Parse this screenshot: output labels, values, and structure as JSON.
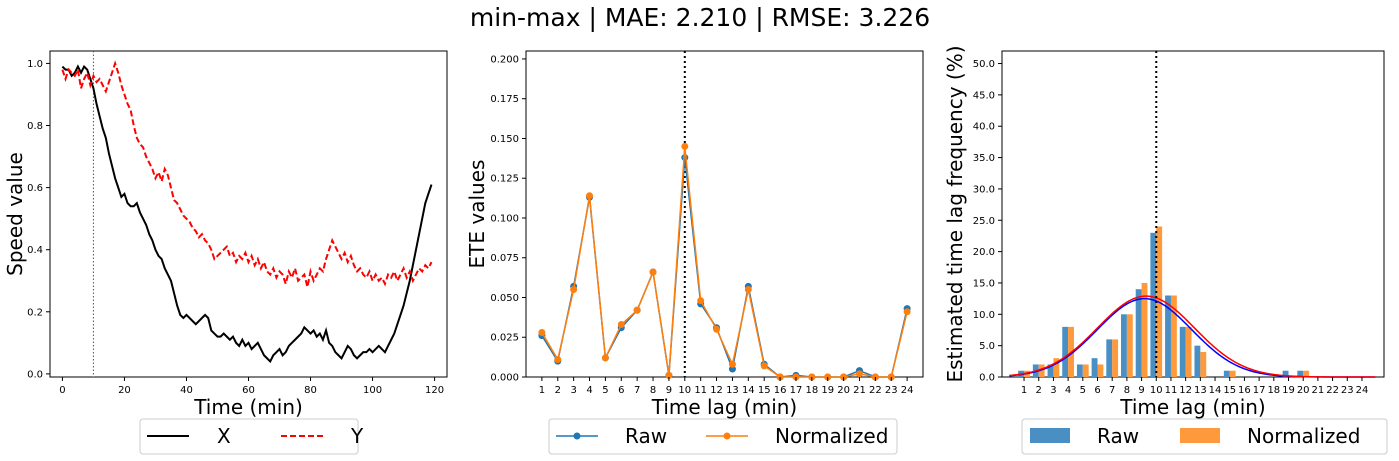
{
  "title": "min-max | MAE: 2.210 | RMSE: 3.226",
  "chart_data": [
    {
      "type": "line",
      "xlabel": "Time (min)",
      "ylabel": "Speed value",
      "xlim": [
        -4,
        124
      ],
      "ylim": [
        -0.01,
        1.04
      ],
      "xticks": [
        "0",
        "20",
        "40",
        "60",
        "80",
        "100",
        "120"
      ],
      "yticks": [
        "0.0",
        "0.2",
        "0.4",
        "0.6",
        "0.8",
        "1.0"
      ],
      "vline": 10,
      "legend": "below",
      "series": [
        {
          "name": "X",
          "color": "#000000",
          "style": "solid",
          "values": [
            0.99,
            0.98,
            0.98,
            0.96,
            0.97,
            0.99,
            0.97,
            0.99,
            0.98,
            0.95,
            0.92,
            0.87,
            0.83,
            0.79,
            0.76,
            0.71,
            0.67,
            0.63,
            0.6,
            0.57,
            0.58,
            0.55,
            0.54,
            0.54,
            0.55,
            0.52,
            0.5,
            0.48,
            0.45,
            0.43,
            0.4,
            0.38,
            0.37,
            0.34,
            0.32,
            0.3,
            0.26,
            0.22,
            0.19,
            0.18,
            0.19,
            0.18,
            0.17,
            0.16,
            0.17,
            0.18,
            0.19,
            0.18,
            0.14,
            0.13,
            0.12,
            0.12,
            0.13,
            0.12,
            0.11,
            0.12,
            0.1,
            0.09,
            0.11,
            0.09,
            0.1,
            0.08,
            0.09,
            0.1,
            0.08,
            0.06,
            0.05,
            0.04,
            0.06,
            0.07,
            0.08,
            0.06,
            0.07,
            0.09,
            0.1,
            0.11,
            0.12,
            0.13,
            0.15,
            0.14,
            0.13,
            0.14,
            0.12,
            0.13,
            0.11,
            0.14,
            0.1,
            0.09,
            0.07,
            0.06,
            0.05,
            0.07,
            0.09,
            0.08,
            0.06,
            0.05,
            0.06,
            0.07,
            0.07,
            0.08,
            0.07,
            0.08,
            0.09,
            0.08,
            0.07,
            0.09,
            0.11,
            0.13,
            0.16,
            0.19,
            0.22,
            0.26,
            0.3,
            0.35,
            0.4,
            0.45,
            0.5,
            0.55,
            0.58,
            0.61
          ]
        },
        {
          "name": "Y",
          "color": "#ff0000",
          "style": "dashed",
          "values": [
            0.98,
            0.95,
            0.98,
            0.97,
            0.96,
            0.98,
            0.92,
            0.95,
            0.97,
            0.93,
            0.96,
            0.94,
            0.95,
            0.93,
            0.91,
            0.94,
            0.97,
            1.0,
            0.97,
            0.93,
            0.9,
            0.87,
            0.85,
            0.8,
            0.76,
            0.74,
            0.73,
            0.7,
            0.68,
            0.66,
            0.63,
            0.65,
            0.62,
            0.66,
            0.64,
            0.6,
            0.56,
            0.55,
            0.53,
            0.51,
            0.5,
            0.49,
            0.47,
            0.46,
            0.44,
            0.45,
            0.43,
            0.42,
            0.4,
            0.37,
            0.38,
            0.39,
            0.4,
            0.41,
            0.38,
            0.39,
            0.36,
            0.38,
            0.37,
            0.39,
            0.36,
            0.38,
            0.35,
            0.37,
            0.34,
            0.36,
            0.33,
            0.32,
            0.34,
            0.31,
            0.33,
            0.32,
            0.29,
            0.33,
            0.31,
            0.34,
            0.3,
            0.31,
            0.32,
            0.28,
            0.33,
            0.3,
            0.32,
            0.34,
            0.33,
            0.37,
            0.4,
            0.43,
            0.41,
            0.39,
            0.37,
            0.39,
            0.36,
            0.38,
            0.35,
            0.33,
            0.34,
            0.32,
            0.31,
            0.33,
            0.3,
            0.32,
            0.3,
            0.31,
            0.29,
            0.32,
            0.31,
            0.33,
            0.3,
            0.32,
            0.34,
            0.31,
            0.33,
            0.3,
            0.32,
            0.34,
            0.33,
            0.35,
            0.34,
            0.36
          ]
        }
      ]
    },
    {
      "type": "line",
      "xlabel": "Time lag (min)",
      "ylabel": "ETE values",
      "xlim": [
        0,
        25
      ],
      "ylim": [
        0,
        0.205
      ],
      "xticks": [
        "1",
        "2",
        "3",
        "4",
        "5",
        "6",
        "7",
        "8",
        "9",
        "10",
        "11",
        "12",
        "13",
        "14",
        "15",
        "16",
        "17",
        "18",
        "19",
        "20",
        "21",
        "22",
        "23",
        "24"
      ],
      "yticks": [
        "0.000",
        "0.025",
        "0.050",
        "0.075",
        "0.100",
        "0.125",
        "0.150",
        "0.175",
        "0.200"
      ],
      "vline": 10,
      "legend": "below",
      "x": [
        1,
        2,
        3,
        4,
        5,
        6,
        7,
        8,
        9,
        10,
        11,
        12,
        13,
        14,
        15,
        16,
        17,
        18,
        19,
        20,
        21,
        22,
        23,
        24
      ],
      "series": [
        {
          "name": "Raw",
          "color": "#1f77b4",
          "values": [
            0.026,
            0.01,
            0.057,
            0.113,
            0.012,
            0.031,
            0.042,
            0.066,
            0.001,
            0.138,
            0.046,
            0.031,
            0.005,
            0.057,
            0.008,
            0.0,
            0.001,
            0.0,
            0.0,
            0.0,
            0.004,
            0.0,
            0.0,
            0.043
          ]
        },
        {
          "name": "Normalized",
          "color": "#ff7f0e",
          "values": [
            0.028,
            0.011,
            0.055,
            0.114,
            0.012,
            0.033,
            0.042,
            0.066,
            0.001,
            0.145,
            0.048,
            0.03,
            0.008,
            0.055,
            0.007,
            0.0,
            0.0,
            0.0,
            0.0,
            0.0,
            0.002,
            0.0,
            0.0,
            0.041
          ]
        }
      ]
    },
    {
      "type": "bar",
      "xlabel": "Time lag (min)",
      "ylabel": "Estimated time lag frequency (%)",
      "xlim": [
        -0.5,
        25.5
      ],
      "ylim": [
        0,
        52
      ],
      "categories": [
        "1",
        "2",
        "3",
        "4",
        "5",
        "6",
        "7",
        "8",
        "9",
        "10",
        "11",
        "12",
        "13",
        "14",
        "15",
        "16",
        "17",
        "18",
        "19",
        "20",
        "21",
        "22",
        "23",
        "24"
      ],
      "yticks": [
        "0.0",
        "5.0",
        "10.0",
        "15.0",
        "20.0",
        "25.0",
        "30.0",
        "35.0",
        "40.0",
        "45.0",
        "50.0"
      ],
      "vline": 10,
      "legend": "below",
      "series": [
        {
          "name": "Raw",
          "color": "#4a8fc3",
          "values": [
            1,
            2,
            2,
            8,
            2,
            3,
            6,
            10,
            14,
            23,
            13,
            8,
            5,
            0,
            1,
            0,
            0,
            0,
            1,
            1,
            0,
            0,
            0,
            0
          ]
        },
        {
          "name": "Normalized",
          "color": "#ff9a3c",
          "values": [
            1,
            2,
            3,
            8,
            2,
            2,
            6,
            10,
            15,
            24,
            13,
            8,
            4,
            0,
            1,
            0,
            0,
            0,
            0,
            1,
            0,
            0,
            0,
            0
          ]
        }
      ],
      "fits": [
        {
          "color": "#0000ff",
          "mean": 9.2,
          "sd": 3.2,
          "peak": 12.5
        },
        {
          "color": "#ff0000",
          "mean": 9.3,
          "sd": 3.3,
          "peak": 12.9
        }
      ]
    }
  ]
}
